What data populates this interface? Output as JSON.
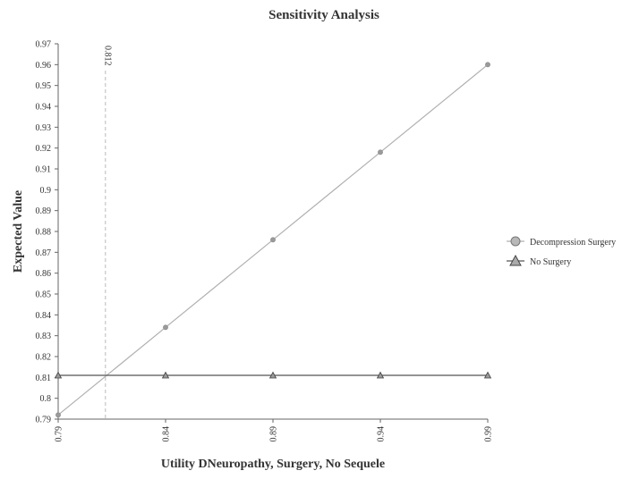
{
  "chart_data": {
    "type": "line",
    "title": "Sensitivity Analysis",
    "xlabel": "Utility DNeuropathy, Surgery, No Sequele",
    "ylabel": "Expected Value",
    "xlim": [
      0.79,
      0.99
    ],
    "ylim": [
      0.79,
      0.97
    ],
    "x_ticks": [
      "0.79",
      "0.84",
      "0.89",
      "0.94",
      "0.99"
    ],
    "y_ticks": [
      "0.79",
      "0.8",
      "0.81",
      "0.82",
      "0.83",
      "0.84",
      "0.85",
      "0.86",
      "0.87",
      "0.88",
      "0.89",
      "0.9",
      "0.91",
      "0.92",
      "0.93",
      "0.94",
      "0.95",
      "0.96",
      "0.97"
    ],
    "threshold": {
      "x": 0.812,
      "label": "0.812"
    },
    "series": [
      {
        "name": "Decompression Surgery",
        "marker": "circle",
        "color": "#b0b0b0",
        "x": [
          0.79,
          0.84,
          0.89,
          0.94,
          0.99
        ],
        "y": [
          0.792,
          0.834,
          0.876,
          0.918,
          0.96
        ]
      },
      {
        "name": "No Surgery",
        "marker": "triangle",
        "color": "#555555",
        "x": [
          0.79,
          0.84,
          0.89,
          0.94,
          0.99
        ],
        "y": [
          0.811,
          0.811,
          0.811,
          0.811,
          0.811
        ]
      }
    ],
    "legend_position": "right"
  }
}
